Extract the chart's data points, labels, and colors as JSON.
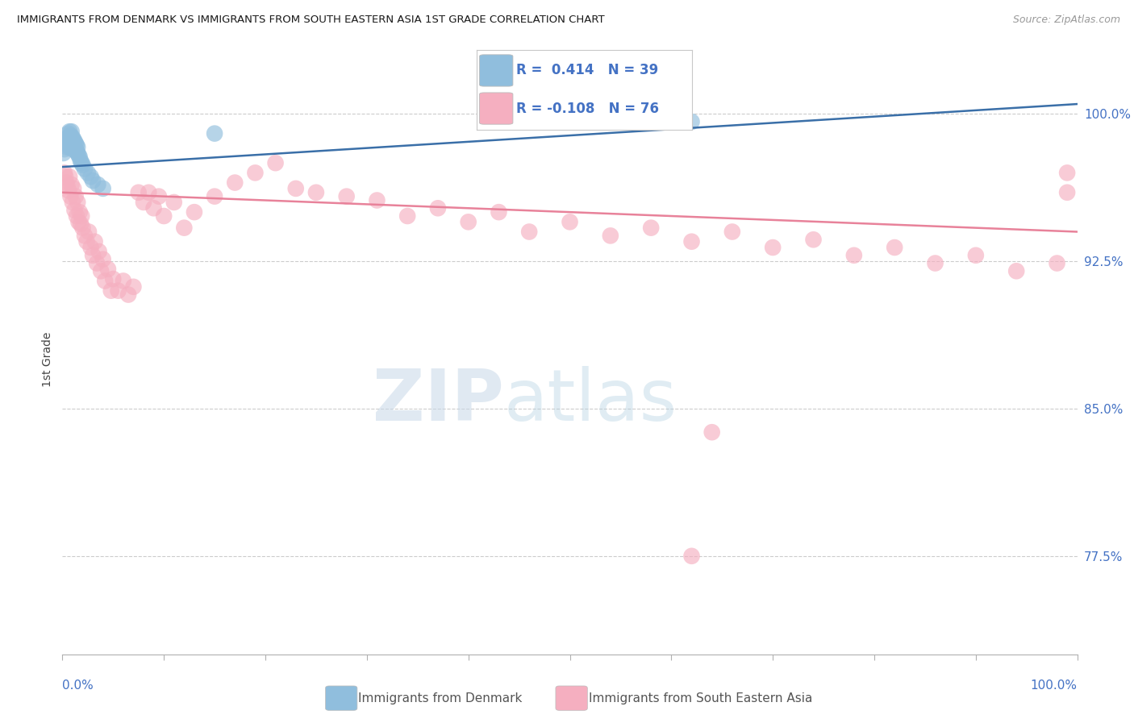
{
  "title": "IMMIGRANTS FROM DENMARK VS IMMIGRANTS FROM SOUTH EASTERN ASIA 1ST GRADE CORRELATION CHART",
  "source": "Source: ZipAtlas.com",
  "ylabel": "1st Grade",
  "ytick_labels": [
    "77.5%",
    "85.0%",
    "92.5%",
    "100.0%"
  ],
  "ytick_values": [
    0.775,
    0.85,
    0.925,
    1.0
  ],
  "xlim": [
    0.0,
    1.0
  ],
  "ylim": [
    0.725,
    1.025
  ],
  "legend_blue_R": "0.414",
  "legend_blue_N": "39",
  "legend_pink_R": "-0.108",
  "legend_pink_N": "76",
  "blue_color": "#90bedd",
  "pink_color": "#f5afc0",
  "blue_line_color": "#3a6fa8",
  "pink_line_color": "#e8829a",
  "blue_line_x0": 0.0,
  "blue_line_y0": 0.973,
  "blue_line_x1": 1.0,
  "blue_line_y1": 1.005,
  "pink_line_x0": 0.0,
  "pink_line_y0": 0.96,
  "pink_line_x1": 1.0,
  "pink_line_y1": 0.94,
  "blue_scatter_x": [
    0.001,
    0.002,
    0.003,
    0.004,
    0.005,
    0.005,
    0.006,
    0.006,
    0.007,
    0.007,
    0.008,
    0.008,
    0.009,
    0.009,
    0.01,
    0.01,
    0.011,
    0.011,
    0.012,
    0.012,
    0.013,
    0.013,
    0.014,
    0.014,
    0.015,
    0.015,
    0.016,
    0.017,
    0.018,
    0.019,
    0.02,
    0.022,
    0.025,
    0.028,
    0.03,
    0.035,
    0.04,
    0.15,
    0.62
  ],
  "blue_scatter_y": [
    0.98,
    0.982,
    0.985,
    0.987,
    0.983,
    0.988,
    0.984,
    0.99,
    0.986,
    0.991,
    0.983,
    0.989,
    0.985,
    0.991,
    0.982,
    0.988,
    0.984,
    0.987,
    0.983,
    0.986,
    0.982,
    0.985,
    0.981,
    0.984,
    0.98,
    0.983,
    0.979,
    0.978,
    0.976,
    0.975,
    0.974,
    0.972,
    0.97,
    0.968,
    0.966,
    0.964,
    0.962,
    0.99,
    0.996
  ],
  "pink_scatter_x": [
    0.002,
    0.003,
    0.004,
    0.005,
    0.006,
    0.007,
    0.008,
    0.009,
    0.01,
    0.011,
    0.012,
    0.013,
    0.014,
    0.015,
    0.016,
    0.017,
    0.018,
    0.019,
    0.02,
    0.022,
    0.024,
    0.026,
    0.028,
    0.03,
    0.032,
    0.034,
    0.036,
    0.038,
    0.04,
    0.042,
    0.045,
    0.048,
    0.05,
    0.055,
    0.06,
    0.065,
    0.07,
    0.075,
    0.08,
    0.085,
    0.09,
    0.095,
    0.1,
    0.11,
    0.12,
    0.13,
    0.15,
    0.17,
    0.19,
    0.21,
    0.23,
    0.25,
    0.28,
    0.31,
    0.34,
    0.37,
    0.4,
    0.43,
    0.46,
    0.5,
    0.54,
    0.58,
    0.62,
    0.66,
    0.7,
    0.74,
    0.78,
    0.82,
    0.86,
    0.9,
    0.94,
    0.98,
    0.99,
    0.99,
    0.62,
    0.64
  ],
  "pink_scatter_y": [
    0.97,
    0.968,
    0.965,
    0.963,
    0.961,
    0.968,
    0.958,
    0.964,
    0.955,
    0.962,
    0.951,
    0.958,
    0.948,
    0.955,
    0.945,
    0.95,
    0.944,
    0.948,
    0.942,
    0.938,
    0.935,
    0.94,
    0.932,
    0.928,
    0.935,
    0.924,
    0.93,
    0.92,
    0.926,
    0.915,
    0.921,
    0.91,
    0.916,
    0.91,
    0.915,
    0.908,
    0.912,
    0.96,
    0.955,
    0.96,
    0.952,
    0.958,
    0.948,
    0.955,
    0.942,
    0.95,
    0.958,
    0.965,
    0.97,
    0.975,
    0.962,
    0.96,
    0.958,
    0.956,
    0.948,
    0.952,
    0.945,
    0.95,
    0.94,
    0.945,
    0.938,
    0.942,
    0.935,
    0.94,
    0.932,
    0.936,
    0.928,
    0.932,
    0.924,
    0.928,
    0.92,
    0.924,
    0.96,
    0.97,
    0.775,
    0.838
  ]
}
